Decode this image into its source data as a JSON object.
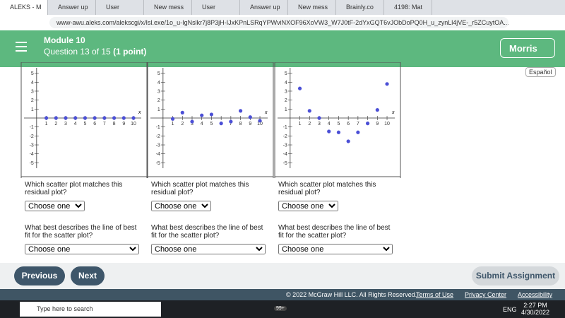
{
  "browser": {
    "tabs": [
      "ALEKS - M",
      "Answer up",
      "User",
      "New mess",
      "User",
      "Answer up",
      "New mess",
      "Brainly.co",
      "4198: Mat"
    ],
    "url": "www-awu.aleks.com/alekscgi/x/Isl.exe/1o_u-IgNslkr7j8P3jH-IJxKPnLSRqYPWviNXOF96XoVW3_W7J0tF-2dYxGQT6vJObDoPQ0H_u_zynLl4jVE-_r5ZCuytOA..."
  },
  "header": {
    "module": "Module 10",
    "question": "Question 13 of 15",
    "points": "(1 point)",
    "user": "Morris",
    "language": "Español"
  },
  "plot_axes": {
    "xlim": [
      -1.3,
      10.8
    ],
    "ylim": [
      -5.6,
      5.6
    ],
    "xticks": [
      1,
      2,
      3,
      4,
      5,
      6,
      7,
      8,
      9,
      10
    ],
    "yticks": [
      -5,
      -4,
      -3,
      -2,
      -1,
      1,
      2,
      3,
      4,
      5
    ],
    "x_label": "x"
  },
  "panels": [
    {
      "x": [
        1,
        2,
        3,
        4,
        5,
        6,
        7,
        8,
        9,
        10
      ],
      "y": [
        0,
        0,
        0,
        0,
        0,
        0,
        0,
        0,
        0,
        0
      ],
      "question1": "Which scatter plot matches this residual plot?",
      "select1": "Choose one",
      "question2": "What best describes the line of best fit for the scatter plot?",
      "select2": "Choose one"
    },
    {
      "x": [
        1,
        2,
        3,
        4,
        5,
        6,
        7,
        8,
        9,
        10
      ],
      "y": [
        -0.1,
        0.6,
        -0.4,
        0.3,
        0.4,
        -0.6,
        -0.4,
        0.8,
        0.1,
        -0.3
      ],
      "question1": "Which scatter plot matches this residual plot?",
      "select1": "Choose one",
      "question2": "What best describes the line of best fit for the scatter plot?",
      "select2": "Choose one"
    },
    {
      "x": [
        1,
        2,
        3,
        4,
        5,
        6,
        7,
        8,
        9,
        10
      ],
      "y": [
        3.3,
        0.8,
        0,
        -1.5,
        -1.6,
        -2.6,
        -1.6,
        -0.6,
        0.9,
        3.8
      ],
      "question1": "Which scatter plot matches this residual plot?",
      "select1": "Choose one",
      "question2": "What best describes the line of best fit for the scatter plot?",
      "select2": "Choose one"
    }
  ],
  "buttons": {
    "previous": "Previous",
    "next": "Next",
    "submit": "Submit Assignment"
  },
  "footer": {
    "copyright": "© 2022 McGraw Hill LLC. All Rights Reserved.",
    "terms": "Terms of Use",
    "privacy": "Privacy Center",
    "accessibility": "Accessibility"
  },
  "taskbar": {
    "search": "Type here to search",
    "badge": "99+",
    "lang": "ENG",
    "time": "2:27 PM",
    "date": "4/30/2022"
  }
}
